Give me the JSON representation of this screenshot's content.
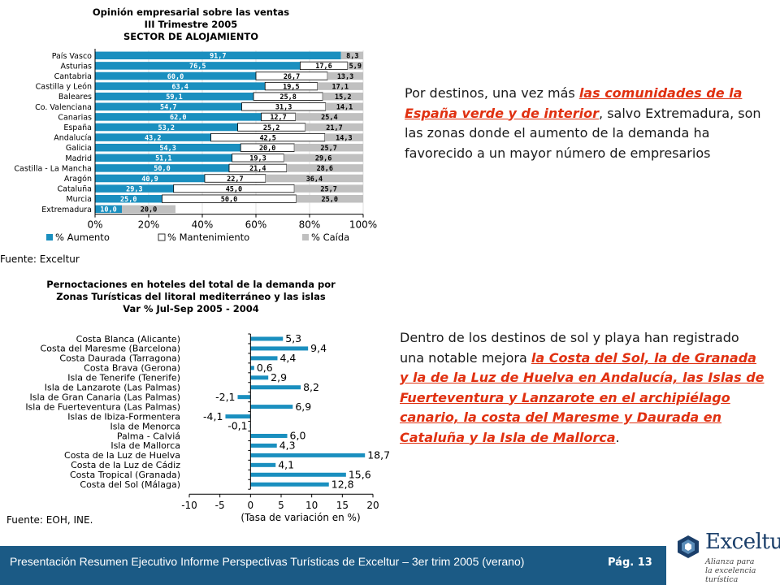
{
  "chart1": {
    "title_lines": [
      "Opinión empresarial sobre las ventas",
      "III Trimestre 2005",
      "SECTOR DE ALOJAMIENTO"
    ],
    "source": "Fuente: Exceltur",
    "chart_data": {
      "type": "bar",
      "stacked": true,
      "orientation": "horizontal",
      "categories": [
        "País Vasco",
        "Asturias",
        "Cantabria",
        "Castilla y León",
        "Baleares",
        "Co. Valenciana",
        "Canarias",
        "España",
        "Andalucía",
        "Galicia",
        "Madrid",
        "Castilla - La Mancha",
        "Aragón",
        "Cataluña",
        "Murcia",
        "Extremadura"
      ],
      "series": [
        {
          "name": "% Aumento",
          "values": [
            91.7,
            76.5,
            60.0,
            63.4,
            59.1,
            54.7,
            62.0,
            53.2,
            43.2,
            54.3,
            51.1,
            50.0,
            40.9,
            29.3,
            25.0,
            10.0
          ],
          "color": "#1a8fbf"
        },
        {
          "name": "% Mantenimiento",
          "values": [
            null,
            17.6,
            26.7,
            19.5,
            25.8,
            31.3,
            12.7,
            25.2,
            42.5,
            20.0,
            19.3,
            21.4,
            22.7,
            45.0,
            50.0,
            null
          ],
          "color": "#ffffff"
        },
        {
          "name": "% Caída",
          "values": [
            8.3,
            5.9,
            13.3,
            17.1,
            15.2,
            14.1,
            25.4,
            21.7,
            14.3,
            25.7,
            29.6,
            28.6,
            36.4,
            25.7,
            25.0,
            20.0
          ],
          "color": "#c0c0c0"
        }
      ],
      "labels": {
        "aumento": [
          "91,7",
          "76,5",
          "60,0",
          "63,4",
          "59,1",
          "54,7",
          "62,0",
          "53,2",
          "43,2",
          "54,3",
          "51,1",
          "50,0",
          "40,9",
          "29,3",
          "25,0",
          "10,0"
        ],
        "mantenimiento": [
          "",
          "17,6",
          "26,7",
          "19,5",
          "25,8",
          "31,3",
          "12,7",
          "25,2",
          "42,5",
          "20,0",
          "19,3",
          "21,4",
          "22,7",
          "45,0",
          "50,0",
          ""
        ],
        "caida": [
          "8,3",
          "5,9",
          "13,3",
          "17,1",
          "15,2",
          "14,1",
          "25,4",
          "21,7",
          "14,3",
          "25,7",
          "29,6",
          "28,6",
          "36,4",
          "25,7",
          "25,0",
          "20,0"
        ]
      },
      "x_ticks": [
        "0%",
        "20%",
        "40%",
        "60%",
        "80%",
        "100%"
      ],
      "xlim": [
        0,
        100
      ],
      "legend_position": "bottom"
    }
  },
  "chart2": {
    "title_lines": [
      "Pernoctaciones en hoteles del total de la demanda por",
      "Zonas Turísticas del litoral mediterráneo y las islas",
      "Var % Jul-Sep 2005 - 2004"
    ],
    "source": "Fuente: EOH, INE.",
    "chart_data": {
      "type": "bar",
      "orientation": "horizontal",
      "categories": [
        "Costa Blanca (Alicante)",
        "Costa del Maresme (Barcelona)",
        "Costa Daurada (Tarragona)",
        "Costa Brava (Gerona)",
        "Isla de Tenerife (Tenerife)",
        "Isla de Lanzarote (Las Palmas)",
        "Isla de Gran Canaria (Las Palmas)",
        "Isla de Fuerteventura (Las Palmas)",
        "Islas de Ibiza-Formentera",
        "Isla de Menorca",
        "Palma - Calviá",
        "Isla de Mallorca",
        "Costa de la Luz de Huelva",
        "Costa de la Luz de Cádiz",
        "Costa Tropical (Granada)",
        "Costa del Sol (Málaga)"
      ],
      "values": [
        5.3,
        9.4,
        4.4,
        0.6,
        2.9,
        8.2,
        -2.1,
        6.9,
        -4.1,
        -0.1,
        6.0,
        4.3,
        18.7,
        4.1,
        15.6,
        12.8
      ],
      "value_labels": [
        "5,3",
        "9,4",
        "4,4",
        "0,6",
        "2,9",
        "8,2",
        "-2,1",
        "6,9",
        "-4,1",
        "-0,1",
        "6,0",
        "4,3",
        "18,7",
        "4,1",
        "15,6",
        "12,8"
      ],
      "x_ticks": [
        "-10",
        "-5",
        "0",
        "5",
        "10",
        "15",
        "20"
      ],
      "xlim": [
        -10,
        20
      ],
      "xlabel": "(Tasa de variación en %)",
      "color": "#1a8fbf"
    }
  },
  "text1": {
    "before": "Por destinos, una vez más ",
    "highlight": "las comunidades de la España verde y de interior",
    "after": ", salvo Extremadura, son las zonas donde el aumento de la demanda ha favorecido a un mayor número de empresarios"
  },
  "text2": {
    "before": "Dentro de los destinos de sol y playa han registrado una notable mejora ",
    "highlight": "la Costa del Sol,  la de Granada y la de la Luz de Huelva en Andalucía,  las Islas de Fuerteventura y Lanzarote en el archipiélago canario, la costa del Maresme y Daurada en Cataluña y la Isla de Mallorca",
    "after": "."
  },
  "footer": {
    "text": "Presentación Resumen Ejecutivo Informe Perspectivas Turísticas de Exceltur – 3er trim 2005 (verano)",
    "page": "Pág. 13"
  },
  "logo": {
    "name": "Exceltur",
    "tagline_lines": [
      "Alianza para",
      "la excelencia turística"
    ]
  }
}
